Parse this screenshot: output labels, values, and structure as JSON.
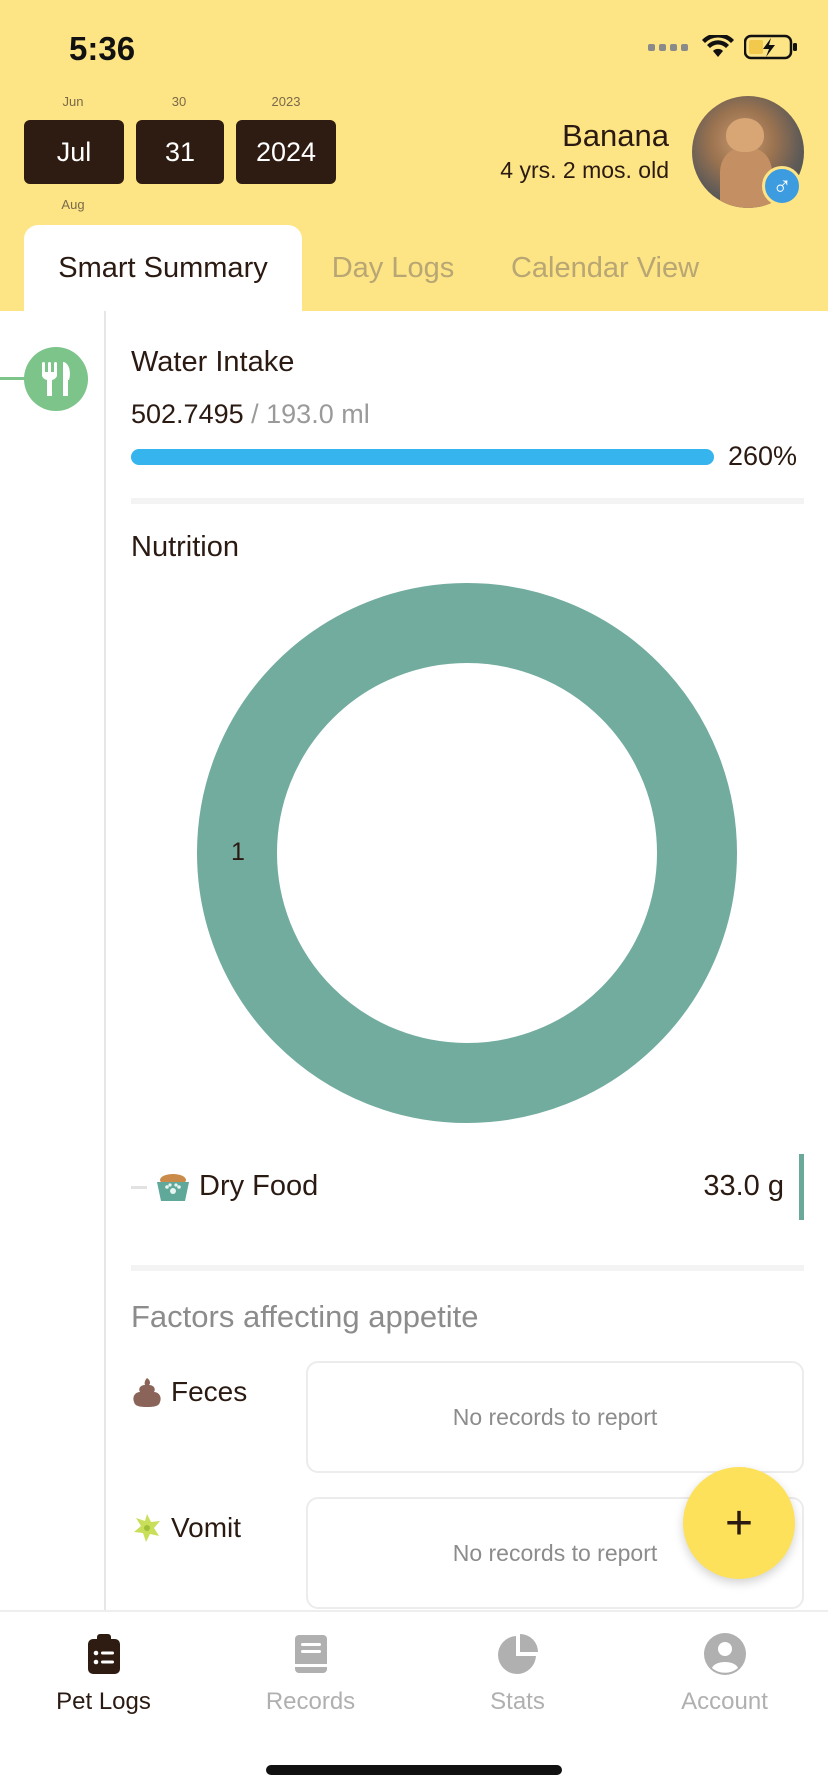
{
  "status_bar": {
    "time": "5:36"
  },
  "date_picker": {
    "above": {
      "month": "Jun",
      "day": "30",
      "year": "2023"
    },
    "selected": {
      "month": "Jul",
      "day": "31",
      "year": "2024"
    },
    "below": {
      "month": "Aug"
    }
  },
  "pet": {
    "name": "Banana",
    "age": "4 yrs. 2 mos. old",
    "gender_symbol": "♂"
  },
  "tabs": [
    {
      "label": "Smart Summary",
      "active": true
    },
    {
      "label": "Day Logs",
      "active": false
    },
    {
      "label": "Calendar View",
      "active": false
    }
  ],
  "water": {
    "title": "Water Intake",
    "value": "502.7495",
    "separator": " / ",
    "goal": "193.0 ml",
    "percent_label": "260%",
    "progress_fraction": 1.0
  },
  "nutrition": {
    "title": "Nutrition",
    "legend": {
      "label": "Dry Food",
      "value": "33.0 g"
    }
  },
  "chart_data": {
    "type": "pie",
    "categories": [
      "Dry Food"
    ],
    "values": [
      33.0
    ],
    "slice_labels": [
      "1"
    ],
    "colors": [
      "#72ac9e"
    ],
    "title": "Nutrition"
  },
  "factors": {
    "title": "Factors affecting appetite",
    "items": [
      {
        "label": "Feces",
        "icon": "poop-icon",
        "message": "No records to report"
      },
      {
        "label": "Vomit",
        "icon": "vomit-icon",
        "message": "No records to report"
      }
    ]
  },
  "fab": {
    "label": "+"
  },
  "nav": [
    {
      "label": "Pet Logs",
      "icon": "clipboard-list-icon",
      "active": true
    },
    {
      "label": "Records",
      "icon": "book-icon",
      "active": false
    },
    {
      "label": "Stats",
      "icon": "pie-chart-icon",
      "active": false
    },
    {
      "label": "Account",
      "icon": "account-circle-icon",
      "active": false
    }
  ],
  "colors": {
    "header_bg": "#fde484",
    "accent_dark": "#2e1c12",
    "water_bar": "#36b4ee",
    "donut": "#72ac9e",
    "fab": "#fde15a",
    "timeline_green": "#7cc48a"
  }
}
